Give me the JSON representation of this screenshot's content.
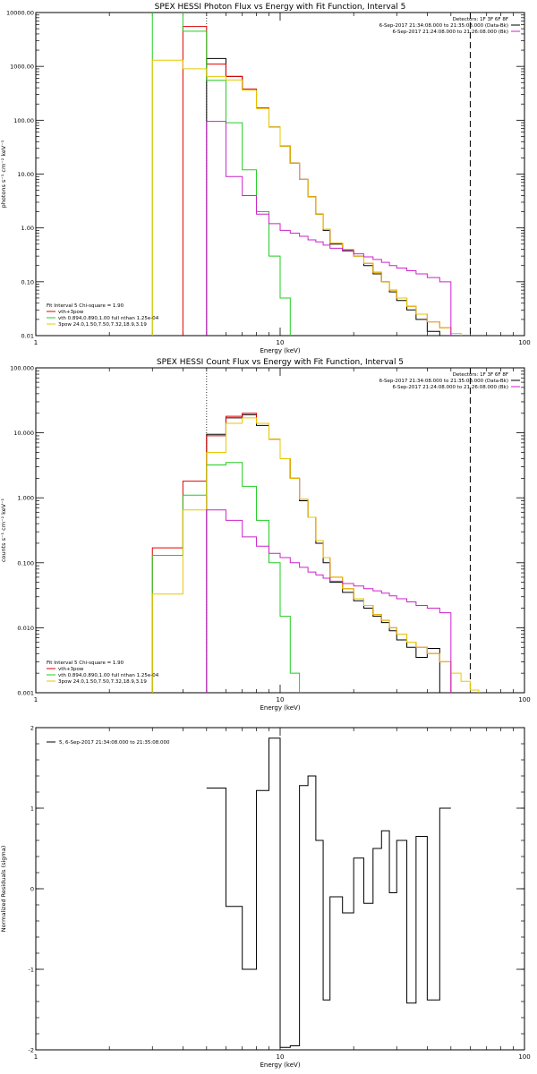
{
  "colors": {
    "data": "#000000",
    "total": "#e00000",
    "vth": "#22cc22",
    "power": "#e6c800",
    "bkg": "#cc22cc",
    "axis": "#000000"
  },
  "chart_data": [
    {
      "type": "line",
      "title": "SPEX HESSI Photon Flux vs Energy with Fit Function, Interval 5",
      "xlabel": "Energy (keV)",
      "ylabel": "photons s⁻¹ cm⁻² keV⁻¹",
      "xscale": "log",
      "yscale": "log",
      "xlim": [
        1,
        100
      ],
      "ylim": [
        0.01,
        10000
      ],
      "x_ticks": [
        1,
        10,
        100
      ],
      "x_tick_labels": [
        "1",
        "10",
        "100"
      ],
      "y_ticks": [
        0.01,
        0.1,
        1,
        10,
        100,
        1000,
        10000
      ],
      "y_tick_labels": [
        "0.01",
        "0.10",
        "1.00",
        "10.00",
        "100.00",
        "1000.00",
        "10000.00"
      ],
      "legend_left": [
        "Fit Interval 5   Chi-square = 1.90",
        "vth+3pow",
        "vth 0.894,0.890,1.00  full nthan 1.25e-04",
        "3pow 24.0,1.50,7.50,7.32,18.9,3.19"
      ],
      "legend_right": [
        "Detectors: 1F 3F 6F 8F",
        "6-Sep-2017 21:34:08.000 to 21:35:08.000 (Data-Bk)",
        "6-Sep-2017 21:24:08.000 to 21:26:08.000 (Bk)"
      ],
      "vlines": [
        {
          "x": 5,
          "style": "dotted"
        },
        {
          "x": 60,
          "style": "dashed"
        }
      ],
      "bin_edges": [
        3,
        4,
        5,
        6,
        7,
        8,
        9,
        10,
        11,
        12,
        13,
        14,
        15,
        16,
        18,
        20,
        22,
        24,
        26,
        28,
        30,
        33,
        36,
        40,
        45,
        50,
        55,
        60,
        65
      ],
      "series": [
        {
          "name": "data",
          "style": "data",
          "x0": 5,
          "values": [
            1400,
            650,
            380,
            170,
            75,
            33,
            16,
            8,
            3.8,
            1.8,
            0.9,
            0.5,
            0.38,
            0.3,
            0.2,
            0.14,
            0.1,
            0.065,
            0.045,
            0.03,
            0.02,
            0.012
          ]
        },
        {
          "name": "vth+3pow",
          "style": "total",
          "x0": 4,
          "values": [
            5500,
            1100,
            650,
            380,
            170,
            75,
            33,
            16,
            8,
            3.8,
            1.8,
            0.95,
            0.52,
            0.4,
            0.3,
            0.22,
            0.15,
            0.1,
            0.07,
            0.05,
            0.035,
            0.025,
            0.018,
            0.014
          ]
        },
        {
          "name": "vth",
          "style": "vth",
          "x0": 3,
          "values": [
            18000,
            4500,
            550,
            90,
            12,
            2,
            0.3,
            0.05,
            0.005
          ]
        },
        {
          "name": "3pow",
          "style": "power",
          "x0": 3,
          "values": [
            1300,
            900,
            650,
            560,
            360,
            165,
            75,
            33,
            16,
            8,
            3.8,
            1.8,
            0.95,
            0.52,
            0.4,
            0.3,
            0.22,
            0.15,
            0.1,
            0.07,
            0.05,
            0.035,
            0.025,
            0.018,
            0.014,
            0.011,
            0.009
          ]
        },
        {
          "name": "bkg",
          "style": "bkg",
          "x0": 5,
          "values": [
            95,
            9,
            4,
            1.8,
            1.2,
            0.9,
            0.8,
            0.7,
            0.6,
            0.55,
            0.48,
            0.42,
            0.37,
            0.33,
            0.29,
            0.26,
            0.23,
            0.2,
            0.18,
            0.16,
            0.14,
            0.12,
            0.1
          ]
        }
      ]
    },
    {
      "type": "line",
      "title": "SPEX HESSI Count Flux vs Energy with Fit Function, Interval 5",
      "xlabel": "Energy (keV)",
      "ylabel": "counts s⁻¹ cm⁻² keV⁻¹",
      "xscale": "log",
      "yscale": "log",
      "xlim": [
        1,
        100
      ],
      "ylim": [
        0.001,
        100
      ],
      "x_ticks": [
        1,
        10,
        100
      ],
      "x_tick_labels": [
        "1",
        "10",
        "100"
      ],
      "y_ticks": [
        0.001,
        0.01,
        0.1,
        1,
        10,
        100
      ],
      "y_tick_labels": [
        "0.001",
        "0.010",
        "0.100",
        "1.000",
        "10.000",
        "100.000"
      ],
      "legend_left": [
        "Fit Interval 5   Chi-square = 1.90",
        "vth+3pow",
        "vth 0.894,0.890,1.00  full nthan 1.25e-04",
        "3pow 24.0,1.50,7.50,7.32,18.9,3.19"
      ],
      "legend_right": [
        "Detectors: 1F 3F 6F 8F",
        "6-Sep-2017 21:34:08.000 to 21:35:08.000 (Data-Bk)",
        "6-Sep-2017 21:24:08.000 to 21:26:08.000 (Bk)"
      ],
      "vlines": [
        {
          "x": 5,
          "style": "dotted"
        },
        {
          "x": 60,
          "style": "dashed"
        }
      ],
      "bin_edges": [
        3,
        4,
        5,
        6,
        7,
        8,
        9,
        10,
        11,
        12,
        13,
        14,
        15,
        16,
        18,
        20,
        22,
        24,
        26,
        28,
        30,
        33,
        36,
        40,
        45,
        50,
        55,
        60,
        65,
        70,
        75
      ],
      "series": [
        {
          "name": "data",
          "style": "data",
          "x0": 5,
          "values": [
            9.5,
            17,
            19,
            13,
            8,
            4,
            2,
            0.9,
            0.5,
            0.2,
            0.1,
            0.05,
            0.035,
            0.026,
            0.02,
            0.015,
            0.012,
            0.009,
            0.0065,
            0.005,
            0.0035,
            0.0048
          ]
        },
        {
          "name": "vth+3pow",
          "style": "total",
          "x0": 3,
          "values": [
            0.17,
            1.8,
            9.0,
            18,
            20,
            14,
            8,
            4,
            2,
            0.95,
            0.5,
            0.22,
            0.12,
            0.06,
            0.04,
            0.028,
            0.022,
            0.016,
            0.013,
            0.01,
            0.008,
            0.006,
            0.005,
            0.004,
            0.003
          ]
        },
        {
          "name": "vth",
          "style": "vth",
          "x0": 3,
          "values": [
            0.13,
            1.1,
            3.2,
            3.5,
            1.5,
            0.45,
            0.1,
            0.015,
            0.002
          ]
        },
        {
          "name": "3pow",
          "style": "power",
          "x0": 3,
          "values": [
            0.033,
            0.65,
            5,
            14,
            17,
            14,
            8,
            4,
            2,
            0.95,
            0.5,
            0.22,
            0.12,
            0.06,
            0.04,
            0.028,
            0.022,
            0.016,
            0.013,
            0.01,
            0.008,
            0.006,
            0.005,
            0.004,
            0.003,
            0.002,
            0.0015,
            0.0011
          ]
        },
        {
          "name": "bkg",
          "style": "bkg",
          "x0": 5,
          "values": [
            0.65,
            0.45,
            0.25,
            0.18,
            0.14,
            0.12,
            0.1,
            0.085,
            0.072,
            0.065,
            0.058,
            0.052,
            0.048,
            0.044,
            0.04,
            0.037,
            0.034,
            0.031,
            0.028,
            0.025,
            0.022,
            0.02,
            0.017
          ]
        }
      ]
    },
    {
      "type": "line",
      "title": "",
      "xlabel": "Energy (keV)",
      "ylabel": "Normalized Residuals (sigma)",
      "xscale": "log",
      "xlim": [
        1,
        100
      ],
      "ylim": [
        -2,
        2
      ],
      "x_ticks": [
        1,
        10,
        100
      ],
      "x_tick_labels": [
        "1",
        "10",
        "100"
      ],
      "y_ticks": [
        -2,
        -1,
        0,
        1,
        2
      ],
      "y_tick_labels": [
        "-2",
        "-1",
        "0",
        "1",
        "2"
      ],
      "legend_left": [
        "5,  6-Sep-2017 21:34:08.000 to 21:35:08.000"
      ],
      "bin_edges": [
        5,
        6,
        7,
        8,
        9,
        10,
        11,
        12,
        13,
        14,
        15,
        16,
        18,
        20,
        22,
        24,
        26,
        28,
        30,
        33,
        36,
        40,
        45,
        50,
        55,
        60
      ],
      "series": [
        {
          "name": "residuals",
          "style": "data",
          "x0": 5,
          "values": [
            1.25,
            -0.22,
            -1.0,
            1.22,
            1.87,
            -1.97,
            -1.95,
            1.28,
            1.4,
            0.6,
            -1.38,
            -0.1,
            -0.3,
            0.38,
            -0.18,
            0.5,
            0.72,
            -0.05,
            0.6,
            -1.42,
            0.65,
            -1.38,
            1.0
          ]
        }
      ]
    }
  ]
}
